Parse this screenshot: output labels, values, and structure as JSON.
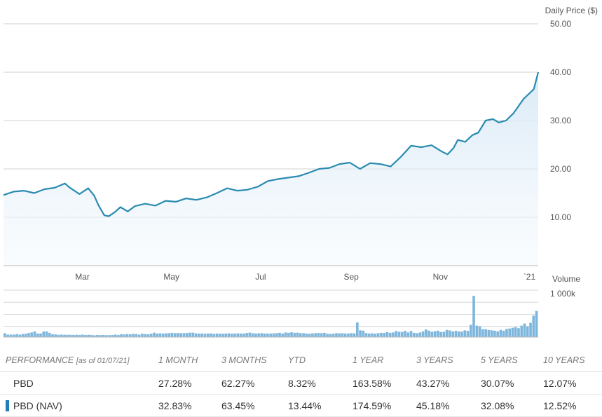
{
  "chart_data": [
    {
      "type": "area",
      "ylabel": "Daily Price ($)",
      "ylim": [
        0,
        50
      ],
      "yticks": [
        "50.00",
        "40.00",
        "30.00",
        "20.00",
        "10.00"
      ],
      "ytick_values": [
        50,
        40,
        30,
        20,
        10
      ],
      "xtick_labels": [
        "Mar",
        "May",
        "Jul",
        "Sep",
        "Nov",
        "`21"
      ],
      "xtick_dates": [
        "2020-03-01",
        "2020-05-01",
        "2020-07-01",
        "2020-09-01",
        "2020-11-01",
        "2021-01-01"
      ],
      "xlim": [
        "2020-01-07",
        "2021-01-07"
      ],
      "grid": true,
      "line_color": "#2a8bb0",
      "series": [
        {
          "x": [
            "2020-01-07",
            "2020-01-14",
            "2020-01-21",
            "2020-01-28",
            "2020-02-04",
            "2020-02-11",
            "2020-02-18",
            "2020-02-21",
            "2020-02-28",
            "2020-03-05",
            "2020-03-09",
            "2020-03-12",
            "2020-03-16",
            "2020-03-19",
            "2020-03-23",
            "2020-03-27",
            "2020-04-01",
            "2020-04-06",
            "2020-04-13",
            "2020-04-20",
            "2020-04-27",
            "2020-05-04",
            "2020-05-11",
            "2020-05-18",
            "2020-05-25",
            "2020-06-01",
            "2020-06-08",
            "2020-06-15",
            "2020-06-22",
            "2020-06-29",
            "2020-07-06",
            "2020-07-13",
            "2020-07-20",
            "2020-07-27",
            "2020-08-03",
            "2020-08-10",
            "2020-08-17",
            "2020-08-24",
            "2020-08-31",
            "2020-09-07",
            "2020-09-14",
            "2020-09-21",
            "2020-09-28",
            "2020-10-05",
            "2020-10-12",
            "2020-10-19",
            "2020-10-26",
            "2020-11-02",
            "2020-11-06",
            "2020-11-10",
            "2020-11-13",
            "2020-11-18",
            "2020-11-23",
            "2020-11-27",
            "2020-12-02",
            "2020-12-07",
            "2020-12-11",
            "2020-12-16",
            "2020-12-21",
            "2020-12-28",
            "2021-01-04",
            "2021-01-07"
          ],
          "y": [
            14.6,
            15.3,
            15.5,
            15.0,
            15.8,
            16.1,
            17.0,
            16.2,
            14.8,
            16.0,
            14.5,
            12.5,
            10.4,
            10.2,
            11.0,
            12.1,
            11.2,
            12.3,
            12.8,
            12.4,
            13.4,
            13.2,
            13.9,
            13.6,
            14.1,
            15.0,
            16.0,
            15.5,
            15.7,
            16.3,
            17.5,
            17.9,
            18.2,
            18.5,
            19.2,
            20.0,
            20.2,
            21.0,
            21.3,
            20.0,
            21.2,
            21.0,
            20.5,
            22.5,
            24.8,
            24.5,
            24.9,
            23.6,
            23.0,
            24.3,
            26.0,
            25.6,
            27.0,
            27.5,
            30.0,
            30.3,
            29.6,
            30.0,
            31.5,
            34.5,
            36.5,
            40.0
          ]
        }
      ]
    },
    {
      "type": "bar",
      "ylabel": "Volume",
      "yticks": [
        "1 000k"
      ],
      "ylim": [
        0,
        1350
      ],
      "grid": true,
      "bar_color": "#7fb7dc",
      "values": [
        110,
        70,
        70,
        70,
        85,
        70,
        85,
        95,
        115,
        130,
        160,
        100,
        100,
        155,
        160,
        120,
        80,
        75,
        65,
        70,
        65,
        65,
        65,
        60,
        65,
        60,
        70,
        60,
        65,
        60,
        50,
        60,
        55,
        60,
        55,
        55,
        60,
        70,
        60,
        80,
        75,
        85,
        80,
        90,
        85,
        70,
        95,
        85,
        80,
        95,
        125,
        100,
        105,
        100,
        105,
        110,
        120,
        110,
        115,
        110,
        110,
        115,
        125,
        125,
        105,
        100,
        100,
        95,
        100,
        105,
        90,
        100,
        95,
        95,
        100,
        105,
        95,
        100,
        105,
        100,
        100,
        115,
        125,
        110,
        100,
        105,
        110,
        100,
        100,
        100,
        105,
        110,
        120,
        100,
        130,
        120,
        135,
        120,
        125,
        110,
        110,
        100,
        95,
        105,
        110,
        115,
        110,
        120,
        95,
        90,
        95,
        110,
        105,
        110,
        100,
        100,
        110,
        105,
        410,
        190,
        180,
        110,
        100,
        105,
        95,
        110,
        120,
        115,
        140,
        120,
        130,
        170,
        150,
        145,
        175,
        130,
        170,
        120,
        110,
        130,
        160,
        215,
        180,
        150,
        165,
        180,
        140,
        150,
        200,
        185,
        160,
        175,
        160,
        155,
        190,
        175,
        340,
        1150,
        320,
        300,
        220,
        220,
        200,
        190,
        180,
        160,
        200,
        180,
        230,
        240,
        260,
        280,
        250,
        320,
        380,
        300,
        400,
        600,
        730
      ]
    }
  ],
  "performance": {
    "headers": [
      "PERFORMANCE",
      "[as of 01/07/21]",
      "1 MONTH",
      "3 MONTHS",
      "YTD",
      "1 YEAR",
      "3 YEARS",
      "5 YEARS",
      "10 YEARS"
    ],
    "rows": [
      {
        "name": "PBD",
        "values": [
          "27.28%",
          "62.27%",
          "8.32%",
          "163.58%",
          "43.27%",
          "30.07%",
          "12.07%"
        ]
      },
      {
        "name": "PBD (NAV)",
        "values": [
          "32.83%",
          "63.45%",
          "13.44%",
          "174.59%",
          "45.18%",
          "32.08%",
          "12.52%"
        ]
      }
    ]
  }
}
